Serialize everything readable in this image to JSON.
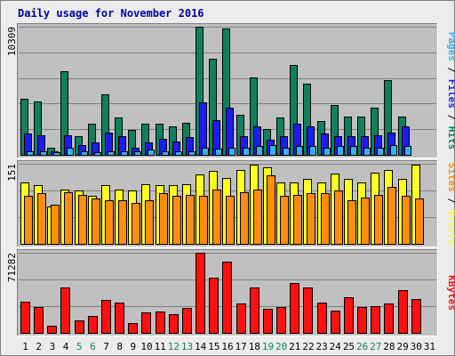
{
  "colors": {
    "background": "#ececec",
    "panel": "#c0c0c0",
    "title": "#0000aa",
    "hits": "#0e8060",
    "files": "#1c1cf0",
    "pages": "#38b0f0",
    "visits": "#ffff20",
    "sites": "#ff8c10",
    "kbytes": "#ff1010",
    "weekend_label": "#0e8060",
    "grid": "#808080"
  },
  "chart_data": {
    "title": "Daily usage for November 2016",
    "type": "bar",
    "categories": [
      "1",
      "2",
      "3",
      "4",
      "5",
      "6",
      "7",
      "8",
      "9",
      "10",
      "11",
      "12",
      "13",
      "14",
      "15",
      "16",
      "17",
      "18",
      "19",
      "20",
      "21",
      "22",
      "23",
      "24",
      "25",
      "26",
      "27",
      "28",
      "29",
      "30",
      "31"
    ],
    "weekend_days": [
      "5",
      "6",
      "12",
      "13",
      "19",
      "20",
      "26",
      "27"
    ],
    "panels": [
      {
        "ymax_label": "10309",
        "ylim": [
          0,
          10309
        ],
        "right_label": [
          {
            "text": "Pages",
            "color": "#38b0f0"
          },
          {
            "text": " / ",
            "color": "#000000"
          },
          {
            "text": "Files",
            "color": "#1c1cf0"
          },
          {
            "text": " / ",
            "color": "#000000"
          },
          {
            "text": "Hits",
            "color": "#0e8060"
          }
        ],
        "series": [
          {
            "name": "Hits",
            "color": "#0e8060",
            "values": [
              4500,
              4300,
              600,
              6700,
              1500,
              2500,
              4900,
              3000,
              2000,
              2500,
              2500,
              2300,
              2600,
              10309,
              7700,
              10200,
              3200,
              6200,
              2100,
              3000,
              7200,
              5700,
              2700,
              4000,
              3100,
              3100,
              3800,
              6000,
              3100,
              0,
              0
            ]
          },
          {
            "name": "Files",
            "color": "#1c1cf0",
            "values": [
              1700,
              1600,
              300,
              1600,
              800,
              1000,
              1800,
              1500,
              600,
              1000,
              1300,
              1100,
              1400,
              4200,
              2800,
              3800,
              1500,
              2300,
              1200,
              1500,
              2500,
              2300,
              1700,
              1500,
              1500,
              1500,
              1600,
              1800,
              2300,
              0,
              0
            ]
          },
          {
            "name": "Pages",
            "color": "#38b0f0",
            "values": [
              300,
              300,
              200,
              600,
              300,
              200,
              300,
              300,
              300,
              400,
              300,
              300,
              300,
              600,
              500,
              600,
              600,
              700,
              800,
              600,
              700,
              700,
              600,
              700,
              700,
              600,
              600,
              800,
              700,
              0,
              0
            ]
          }
        ]
      },
      {
        "ymax_label": "151",
        "ylim": [
          0,
          151
        ],
        "right_label": [
          {
            "text": "Sites",
            "color": "#ff8c10"
          },
          {
            "text": " / ",
            "color": "#000000"
          },
          {
            "text": "Visits",
            "color": "#ffff20"
          }
        ],
        "series": [
          {
            "name": "Visits",
            "color": "#ffff20",
            "values": [
              115,
              110,
              70,
              103,
              101,
              90,
              110,
              103,
              100,
              112,
              110,
              111,
              112,
              131,
              138,
              124,
              140,
              150,
              145,
              115,
              115,
              123,
              115,
              133,
              122,
              115,
              135,
              140,
              123,
              150,
              0
            ]
          },
          {
            "name": "Sites",
            "color": "#ff8c10",
            "values": [
              90,
              95,
              73,
              98,
              93,
              85,
              82,
              83,
              78,
              83,
              95,
              90,
              92,
              90,
              102,
              90,
              97,
              102,
              130,
              90,
              92,
              96,
              95,
              100,
              83,
              88,
              93,
              108,
              90,
              86,
              0
            ]
          }
        ]
      },
      {
        "ymax_label": "71282",
        "ylim": [
          0,
          71282
        ],
        "right_label": [
          {
            "text": "KBytes",
            "color": "#ff1010"
          }
        ],
        "series": [
          {
            "name": "KBytes",
            "color": "#ff1010",
            "values": [
              28000,
              23000,
              6000,
              40000,
              11000,
              15000,
              29000,
              27000,
              9000,
              18000,
              19000,
              17000,
              22000,
              71282,
              49000,
              63000,
              26000,
              40000,
              21000,
              23000,
              44000,
              40000,
              27000,
              20000,
              32000,
              23000,
              24000,
              26000,
              38000,
              30000,
              0
            ]
          }
        ]
      }
    ]
  }
}
